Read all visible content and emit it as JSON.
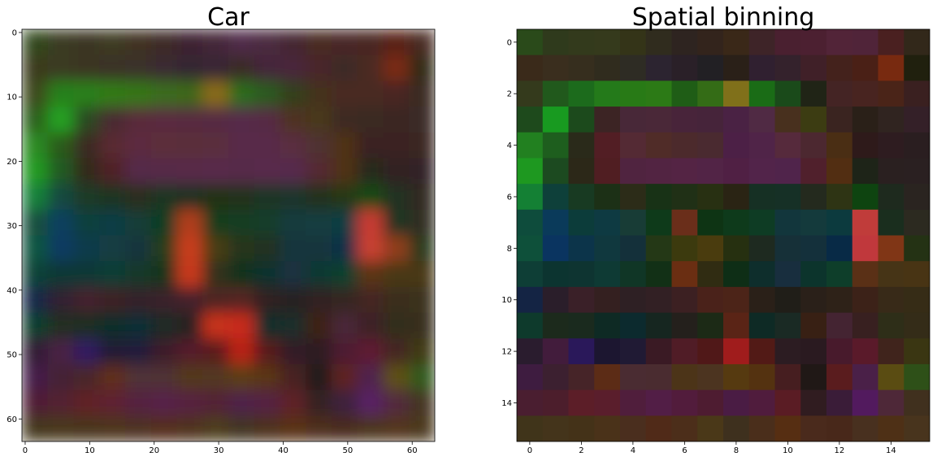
{
  "chart_data": [
    {
      "type": "image",
      "title": "Car",
      "interpolation": "bilinear",
      "xlim": [
        -0.5,
        63.5
      ],
      "ylim": [
        63.5,
        -0.5
      ],
      "xticks": [
        0,
        10,
        20,
        30,
        40,
        50,
        60
      ],
      "yticks": [
        0,
        10,
        20,
        30,
        40,
        50,
        60
      ],
      "pixels": [
        [
          "#304a1c",
          "#3a3a20",
          "#3a3420",
          "#3e3a22",
          "#403020",
          "#3e2a28",
          "#3e2430",
          "#442838",
          "#502c48",
          "#4c2a40",
          "#442630",
          "#4a2a24",
          "#4a2828",
          "#4a2624",
          "#5a2018",
          "#4a2c20"
        ],
        [
          "#3a3a1e",
          "#3a3a22",
          "#3a3424",
          "#3a3228",
          "#3a302c",
          "#3a2c30",
          "#342830",
          "#382834",
          "#3a2c26",
          "#44283a",
          "#48283a",
          "#4a282c",
          "#3e2c28",
          "#4c2a20",
          "#7a2a14",
          "#302a18"
        ],
        [
          "#3c4a1e",
          "#28801a",
          "#2c801c",
          "#307a18",
          "#347618",
          "#3a6c1a",
          "#3e6818",
          "#8a6a14",
          "#2a6c1a",
          "#2a5a1a",
          "#30401c",
          "#44301c",
          "#4a2a24",
          "#4a2a24",
          "#4a2820",
          "#3a2a20"
        ],
        [
          "#2c601c",
          "#28a020",
          "#2a4a20",
          "#4a2a30",
          "#5a2a3a",
          "#5a2a40",
          "#582a40",
          "#562a42",
          "#562a48",
          "#562a44",
          "#503020",
          "#48381a",
          "#3e2a20",
          "#3a2a22",
          "#3a2624",
          "#3a2a28"
        ],
        [
          "#2a8a20",
          "#2a5a1e",
          "#3a2a20",
          "#5a2a30",
          "#5c2a40",
          "#5c2e3a",
          "#5a2e3a",
          "#5a2e3c",
          "#582a48",
          "#582a48",
          "#5a2e40",
          "#503032",
          "#503018",
          "#3a2420",
          "#3a2424",
          "#3a2824"
        ],
        [
          "#229a24",
          "#205a22",
          "#302a1e",
          "#502428",
          "#542a48",
          "#562a48",
          "#582a4a",
          "#582a4b",
          "#562a49",
          "#582a4c",
          "#562a4d",
          "#542a30",
          "#503218",
          "#262a1e",
          "#302424",
          "#302425"
        ],
        [
          "#18803a",
          "#144a40",
          "#1a3a28",
          "#1e3420",
          "#2a2e1e",
          "#1a3420",
          "#1e3020",
          "#243018",
          "#22301a",
          "#1a3428",
          "#1a3429",
          "#20301e",
          "#283818",
          "#124a18",
          "#243020",
          "#302a24"
        ],
        [
          "#12503e",
          "#0e405e",
          "#10403e",
          "#103c44",
          "#183e38",
          "#103e22",
          "#b03c1c",
          "#183e1c",
          "#123c20",
          "#123e2a",
          "#143a3e",
          "#163e40",
          "#103e42",
          "#c83a30",
          "#1c3420",
          "#302e24"
        ],
        [
          "#105440",
          "#0c3a62",
          "#0e3a4c",
          "#123c42",
          "#16363c",
          "#283c1c",
          "#c83c1c",
          "#4a3e14",
          "#28341a",
          "#203024",
          "#18343c",
          "#16343e",
          "#0e3046",
          "#c84030",
          "#903c1a",
          "#2c3a1a"
        ],
        [
          "#104238",
          "#0e3834",
          "#103835",
          "#103c36",
          "#12382a",
          "#14341c",
          "#c8381a",
          "#32301a",
          "#10321c",
          "#10322e",
          "#1a3240",
          "#0e3830",
          "#10402e",
          "#5c3418",
          "#4a3818",
          "#4a3819"
        ],
        [
          "#18284a",
          "#302430",
          "#44242e",
          "#3c2428",
          "#36242a",
          "#3a242a",
          "#44242b",
          "#502620",
          "#542820",
          "#302420",
          "#262220",
          "#302421",
          "#342620",
          "#442620",
          "#3a2e1e",
          "#3a301c"
        ],
        [
          "#10402e",
          "#202e22",
          "#1e2e24",
          "#102e2a",
          "#0e2e34",
          "#1a2a26",
          "#282422",
          "#c8301a",
          "#c82a1a",
          "#102e2b",
          "#1e2e2a",
          "#3e2418",
          "#4a2838",
          "#3e2426",
          "#322e1e",
          "#382e1e"
        ],
        [
          "#301e34",
          "#482044",
          "#301c60",
          "#201a36",
          "#241e3a",
          "#3e1e2a",
          "#541e2c",
          "#5a1c1e",
          "#b82018",
          "#581e1a",
          "#301e26",
          "#2e1e24",
          "#4e1e30",
          "#5e1e30",
          "#442820",
          "#403a18"
        ],
        [
          "#441e48",
          "#442436",
          "#4a282c",
          "#602e1a",
          "#503038",
          "#503034",
          "#52381c",
          "#523824",
          "#5c3e14",
          "#5a3614",
          "#4a2224",
          "#241c1a",
          "#5e2022",
          "#50244e",
          "#5e5018",
          "#305a1c"
        ],
        [
          "#501e34",
          "#522230",
          "#602228",
          "#5e2230",
          "#542240",
          "#56224a",
          "#562241",
          "#522234",
          "#502248",
          "#542242",
          "#5e2028",
          "#342024",
          "#3e203c",
          "#582064",
          "#522c3c",
          "#443422"
        ],
        [
          "#44381e",
          "#48381f",
          "#48361c",
          "#4e361c",
          "#4e3222",
          "#542e1c",
          "#50321c",
          "#4e3c1c",
          "#423422",
          "#4e321e",
          "#5a3216",
          "#4e2e1c",
          "#4a2c1e",
          "#4c341e",
          "#52341a",
          "#4c381e"
        ]
      ]
    },
    {
      "type": "image",
      "title": "Spatial binning",
      "interpolation": "nearest",
      "xlim": [
        -0.5,
        15.5
      ],
      "ylim": [
        15.5,
        -0.5
      ],
      "xticks": [
        0,
        2,
        4,
        6,
        8,
        10,
        12,
        14
      ],
      "yticks": [
        0,
        2,
        4,
        6,
        8,
        10,
        12,
        14
      ],
      "pixels": [
        [
          "#2a4a1a",
          "#2f3a1c",
          "#333a1c",
          "#353a1c",
          "#343418",
          "#302c1e",
          "#2e2420",
          "#33241c",
          "#3a2818",
          "#3e2428",
          "#4a2030",
          "#4c2031",
          "#522438",
          "#502439",
          "#4a2020",
          "#32281a"
        ],
        [
          "#3a2a1a",
          "#3a2e1e",
          "#362e1e",
          "#302c1e",
          "#2e2c24",
          "#2c2430",
          "#2a2028",
          "#222024",
          "#2a2018",
          "#302030",
          "#34222c",
          "#402028",
          "#44221c",
          "#4a2016",
          "#782a10",
          "#20200e"
        ],
        [
          "#343a1c",
          "#21591c",
          "#1c6b1c",
          "#247a1a",
          "#287a16",
          "#2c7a16",
          "#1f5d16",
          "#346c16",
          "#80701a",
          "#1a6c16",
          "#1a4a1a",
          "#202416",
          "#442424",
          "#482420",
          "#4a2418",
          "#3a2020"
        ],
        [
          "#1e4a1c",
          "#189a20",
          "#1c4a1c",
          "#3c2424",
          "#482838",
          "#4a2838",
          "#48243a",
          "#46243a",
          "#4a2244",
          "#502a44",
          "#48301e",
          "#3c3c12",
          "#3a2420",
          "#2a2018",
          "#302420",
          "#342028"
        ],
        [
          "#228020",
          "#1e5e1e",
          "#2a2a1a",
          "#521e24",
          "#542a34",
          "#502c28",
          "#4c2a2c",
          "#4a2a30",
          "#4c2046",
          "#502448",
          "#562a3c",
          "#4c2830",
          "#4a2e14",
          "#2e1a1a",
          "#2e1c20",
          "#2a1e20"
        ],
        [
          "#1e9820",
          "#1c4a20",
          "#2c2818",
          "#501e22",
          "#502440",
          "#522442",
          "#542444",
          "#522446",
          "#502044",
          "#52244a",
          "#50244b",
          "#50202c",
          "#522e12",
          "#1e2418",
          "#2a2020",
          "#2a2021"
        ],
        [
          "#148034",
          "#0e403a",
          "#183a22",
          "#1c3016",
          "#2c2c18",
          "#183216",
          "#203016",
          "#283012",
          "#2a2414",
          "#163024",
          "#163026",
          "#242a1e",
          "#2e3414",
          "#0e4410",
          "#1e2a1e",
          "#2a2420"
        ],
        [
          "#0e4c3c",
          "#0a3a5a",
          "#0c3c3a",
          "#0e3a42",
          "#183c36",
          "#0e3a1a",
          "#6a2e1a",
          "#0e3414",
          "#0e3a1b",
          "#0e3c24",
          "#12363c",
          "#143a3c",
          "#0c3a3e",
          "#c03c3a",
          "#1a2e1e",
          "#2c2a20"
        ],
        [
          "#0e503a",
          "#0a3460",
          "#0c344a",
          "#10383e",
          "#14303a",
          "#243816",
          "#3c3a0e",
          "#4a3c0e",
          "#263010",
          "#1e2a20",
          "#163038",
          "#14303b",
          "#082a46",
          "#c0383c",
          "#803616",
          "#243214"
        ],
        [
          "#0e3e36",
          "#0c3430",
          "#0e3431",
          "#0e3a34",
          "#103626",
          "#123016",
          "#6a2e12",
          "#302c12",
          "#0e2e16",
          "#0e2e2c",
          "#182e3e",
          "#0c342c",
          "#0e3e2a",
          "#5a3016",
          "#463416",
          "#483414"
        ],
        [
          "#142444",
          "#2a1e2a",
          "#3a2028",
          "#342020",
          "#2e2024",
          "#322024",
          "#3c2022",
          "#4a221a",
          "#4c2418",
          "#2a2018",
          "#201e18",
          "#2a2019",
          "#2e2218",
          "#3c2218",
          "#382a18",
          "#362c16"
        ],
        [
          "#0e3a2c",
          "#1c2a1c",
          "#1a2a1e",
          "#0e2a24",
          "#0c2a2e",
          "#162620",
          "#24201c",
          "#1c2a16",
          "#5a2416",
          "#0e2a25",
          "#1a2a24",
          "#382014",
          "#442432",
          "#382020",
          "#2e2e18",
          "#342c18"
        ],
        [
          "#2a1c2e",
          "#421c3c",
          "#2a185a",
          "#1c1630",
          "#201a34",
          "#3a1a24",
          "#501c26",
          "#501818",
          "#a01c1c",
          "#521a16",
          "#2c1c22",
          "#2a1a20",
          "#481a2c",
          "#5a1a2a",
          "#40241c",
          "#3a3612"
        ],
        [
          "#3e1c40",
          "#3c2030",
          "#462428",
          "#5c2c16",
          "#4a2c32",
          "#4a2c30",
          "#4c3418",
          "#4c3420",
          "#563a10",
          "#543210",
          "#461e20",
          "#201816",
          "#5a1c1e",
          "#4a2048",
          "#5a4c12",
          "#2e5018"
        ],
        [
          "#4a1e30",
          "#4c1e2c",
          "#5c1e28",
          "#5a1e2c",
          "#501e3c",
          "#521e46",
          "#521c3c",
          "#4e1c31",
          "#4a1c44",
          "#501c3d",
          "#5a1c24",
          "#301c20",
          "#3a1c38",
          "#521a5e",
          "#4e2838",
          "#40301e"
        ],
        [
          "#40341a",
          "#44341b",
          "#443218",
          "#4a3219",
          "#4a2e1e",
          "#502a18",
          "#4c2e1a",
          "#4a3818",
          "#3e301e",
          "#4a2e1b",
          "#562e12",
          "#4a2a1c",
          "#48281a",
          "#48301f",
          "#4e3016",
          "#48341d"
        ]
      ]
    }
  ]
}
